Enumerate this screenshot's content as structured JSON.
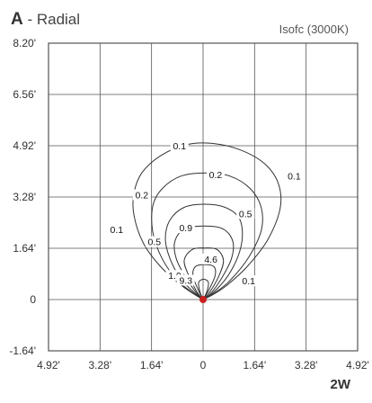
{
  "title": {
    "letter": "A",
    "rest": " - Radial"
  },
  "subtitle": "Isofc (3000K)",
  "corner_label": "2W",
  "colors": {
    "line": "#333333",
    "grid": "#555555",
    "source": "#cc1f1f",
    "text": "#333333"
  },
  "chart_data": {
    "type": "line",
    "title": "A - Radial",
    "subtitle": "Isofc (3000K)",
    "grid": true,
    "xlim": [
      -4.92,
      4.92
    ],
    "ylim": [
      -1.64,
      8.2
    ],
    "x_ticks": [
      -4.92,
      -3.28,
      -1.64,
      0,
      1.64,
      3.28,
      4.92
    ],
    "x_tick_labels": [
      "4.92'",
      "3.28'",
      "1.64'",
      "0",
      "1.64'",
      "3.28'",
      "4.92'"
    ],
    "y_ticks": [
      8.2,
      6.56,
      4.92,
      3.28,
      1.64,
      0,
      -1.64
    ],
    "y_tick_labels": [
      "8.20'",
      "6.56'",
      "4.92'",
      "3.28'",
      "1.64'",
      "0",
      "-1.64'"
    ],
    "source_point": [
      0,
      0
    ],
    "series": [
      {
        "name": "0.1",
        "values": [
          [
            0,
            0
          ],
          [
            -0.3,
            0.18
          ],
          [
            -0.75,
            0.5
          ],
          [
            -1.35,
            1.05
          ],
          [
            -1.9,
            1.8
          ],
          [
            -2.2,
            2.7
          ],
          [
            -2.2,
            3.4
          ],
          [
            -1.95,
            4.05
          ],
          [
            -1.35,
            4.6
          ],
          [
            -0.55,
            4.95
          ],
          [
            0.25,
            5.0
          ],
          [
            1.15,
            4.8
          ],
          [
            1.95,
            4.35
          ],
          [
            2.4,
            3.7
          ],
          [
            2.45,
            2.9
          ],
          [
            2.05,
            1.9
          ],
          [
            1.4,
            1.05
          ],
          [
            0.75,
            0.45
          ],
          [
            0.3,
            0.15
          ],
          [
            0,
            0
          ]
        ]
      },
      {
        "name": "0.2",
        "values": [
          [
            0,
            0
          ],
          [
            -0.3,
            0.2
          ],
          [
            -0.8,
            0.6
          ],
          [
            -1.3,
            1.3
          ],
          [
            -1.6,
            2.15
          ],
          [
            -1.6,
            3.0
          ],
          [
            -1.3,
            3.55
          ],
          [
            -0.7,
            3.95
          ],
          [
            0.1,
            4.05
          ],
          [
            0.85,
            3.95
          ],
          [
            1.5,
            3.55
          ],
          [
            1.85,
            2.95
          ],
          [
            1.85,
            2.2
          ],
          [
            1.45,
            1.35
          ],
          [
            0.85,
            0.6
          ],
          [
            0.35,
            0.2
          ],
          [
            0,
            0
          ]
        ]
      },
      {
        "name": "0.5",
        "values": [
          [
            0,
            0
          ],
          [
            -0.25,
            0.2
          ],
          [
            -0.7,
            0.65
          ],
          [
            -1.05,
            1.3
          ],
          [
            -1.2,
            1.95
          ],
          [
            -1.05,
            2.55
          ],
          [
            -0.6,
            2.95
          ],
          [
            0.05,
            3.05
          ],
          [
            0.7,
            2.95
          ],
          [
            1.15,
            2.6
          ],
          [
            1.25,
            2.0
          ],
          [
            1.1,
            1.35
          ],
          [
            0.75,
            0.7
          ],
          [
            0.3,
            0.2
          ],
          [
            0,
            0
          ]
        ]
      },
      {
        "name": "0.9",
        "values": [
          [
            0,
            0
          ],
          [
            -0.2,
            0.2
          ],
          [
            -0.55,
            0.7
          ],
          [
            -0.85,
            1.3
          ],
          [
            -0.9,
            1.85
          ],
          [
            -0.6,
            2.25
          ],
          [
            0.05,
            2.35
          ],
          [
            0.65,
            2.25
          ],
          [
            0.95,
            1.85
          ],
          [
            0.9,
            1.3
          ],
          [
            0.6,
            0.7
          ],
          [
            0.25,
            0.2
          ],
          [
            0,
            0
          ]
        ]
      },
      {
        "name": "1.9",
        "values": [
          [
            0,
            0
          ],
          [
            -0.2,
            0.25
          ],
          [
            -0.45,
            0.75
          ],
          [
            -0.6,
            1.25
          ],
          [
            -0.35,
            1.6
          ],
          [
            0.05,
            1.65
          ],
          [
            0.45,
            1.6
          ],
          [
            0.65,
            1.25
          ],
          [
            0.5,
            0.75
          ],
          [
            0.22,
            0.25
          ],
          [
            0,
            0
          ]
        ]
      },
      {
        "name": "4.6",
        "values": [
          [
            0,
            0
          ],
          [
            -0.15,
            0.3
          ],
          [
            -0.32,
            0.75
          ],
          [
            -0.25,
            1.05
          ],
          [
            0.05,
            1.12
          ],
          [
            0.35,
            1.05
          ],
          [
            0.38,
            0.75
          ],
          [
            0.18,
            0.3
          ],
          [
            0,
            0
          ]
        ]
      },
      {
        "name": "9.3",
        "values": [
          [
            0,
            0
          ],
          [
            -0.1,
            0.25
          ],
          [
            -0.14,
            0.55
          ],
          [
            0.02,
            0.65
          ],
          [
            0.17,
            0.55
          ],
          [
            0.12,
            0.25
          ],
          [
            0,
            0
          ]
        ]
      }
    ],
    "labels": [
      {
        "text": "0.1",
        "x": -0.75,
        "y": 4.92
      },
      {
        "text": "0.1",
        "x": 2.9,
        "y": 3.95
      },
      {
        "text": "0.1",
        "x": -2.75,
        "y": 2.25
      },
      {
        "text": "0.1",
        "x": 1.45,
        "y": 0.6
      },
      {
        "text": "0.2",
        "x": 0.4,
        "y": 4.0
      },
      {
        "text": "0.2",
        "x": -1.95,
        "y": 3.35
      },
      {
        "text": "0.5",
        "x": 1.35,
        "y": 2.75
      },
      {
        "text": "0.5",
        "x": -1.55,
        "y": 1.85
      },
      {
        "text": "0.9",
        "x": -0.55,
        "y": 2.3
      },
      {
        "text": "4.6",
        "x": 0.25,
        "y": 1.3
      },
      {
        "text": "1.9",
        "x": -0.9,
        "y": 0.77
      },
      {
        "text": "9.3",
        "x": -0.55,
        "y": 0.62
      }
    ]
  }
}
